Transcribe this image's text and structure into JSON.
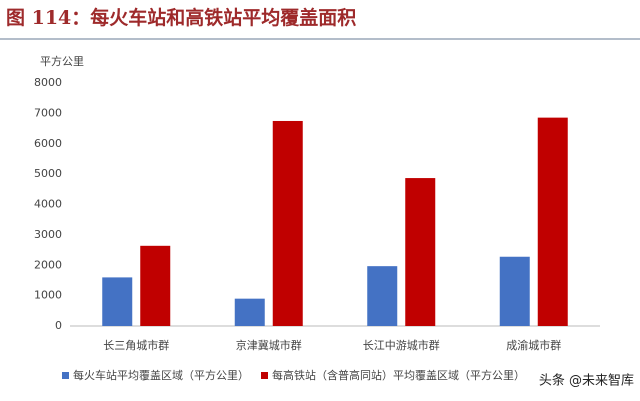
{
  "chart_data": {
    "type": "bar",
    "title": "图 114：每火车站和高铁站平均覆盖面积",
    "y_label": "平方公里",
    "categories": [
      "长三角城市群",
      "京津冀城市群",
      "长江中游城市群",
      "成渝城市群"
    ],
    "series": [
      {
        "name": "每火车站平均覆盖区域（平方公里）",
        "color": "#4472c4",
        "values": [
          1600,
          900,
          1970,
          2280
        ]
      },
      {
        "name": "每高铁站（含普高同站）平均覆盖区域（平方公里）",
        "color": "#c00000",
        "values": [
          2640,
          6750,
          4870,
          6860
        ]
      }
    ],
    "ylim": [
      0,
      8000
    ],
    "yticks": [
      0,
      1000,
      2000,
      3000,
      4000,
      5000,
      6000,
      7000,
      8000
    ],
    "grid": false,
    "watermark": "头条 @未来智库"
  }
}
